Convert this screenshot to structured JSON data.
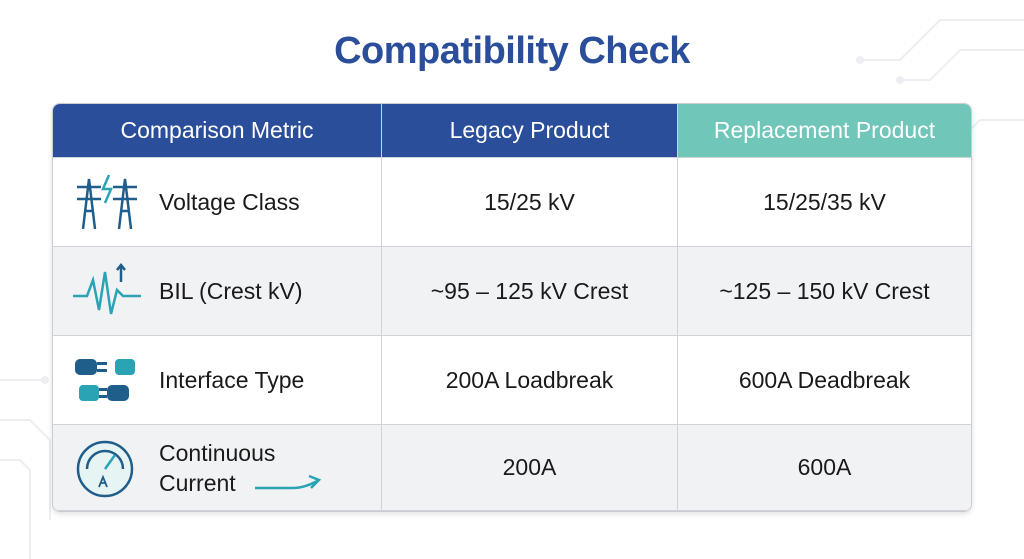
{
  "header": {
    "title": "Compatibility Check"
  },
  "table": {
    "columns": [
      "Comparison Metric",
      "Legacy Product",
      "Replacement Product"
    ],
    "rows": [
      [
        "Voltage Class",
        "15/25 kV",
        "15/25/35 kV"
      ],
      [
        "BIL (Crest kV)",
        "~95 – 125 kV Crest",
        "~125 – 150 kV Crest"
      ],
      [
        "Interface Type",
        "200A Loadbreak",
        "600A Deadbreak"
      ],
      [
        "Continuous Current",
        "200A",
        "600A"
      ]
    ]
  }
}
